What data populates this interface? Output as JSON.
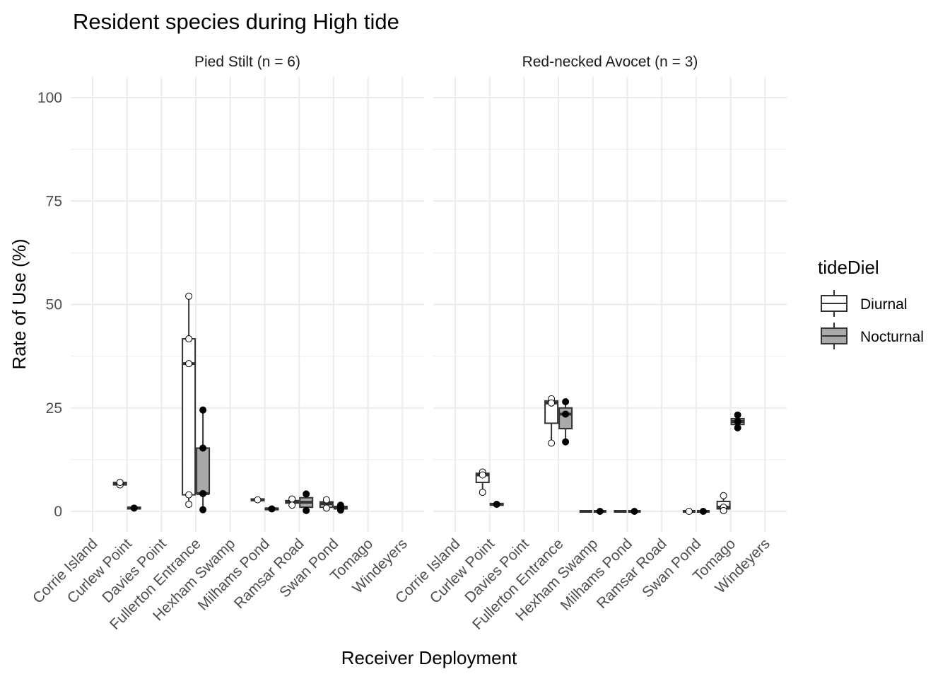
{
  "chart_data": {
    "type": "box",
    "title": "Resident species during High tide",
    "xlabel": "Receiver Deployment",
    "ylabel": "Rate of Use (%)",
    "ylim": [
      -5,
      105
    ],
    "yticks": [
      0,
      25,
      50,
      75,
      100
    ],
    "grid": true,
    "legend": {
      "title": "tideDiel",
      "position": "right",
      "entries": [
        {
          "name": "Diurnal",
          "fill": "#ffffff"
        },
        {
          "name": "Nocturnal",
          "fill": "#a9a9a9"
        }
      ]
    },
    "categories": [
      "Corrie Island",
      "Curlew Point",
      "Davies Point",
      "Fullerton Entrance",
      "Hexham Swamp",
      "Milhams Pond",
      "Ramsar Road",
      "Swan Pond",
      "Tomago",
      "Windeyers"
    ],
    "facets": [
      {
        "label": "Pied Stilt (n = 6)",
        "boxes": [
          {
            "category": "Curlew Point",
            "group": "Diurnal",
            "q1": 6.4,
            "median": 6.7,
            "q3": 7.0,
            "lower": 6.4,
            "upper": 7.0,
            "points": [
              6.4,
              7.0
            ]
          },
          {
            "category": "Curlew Point",
            "group": "Nocturnal",
            "q1": 0.6,
            "median": 0.8,
            "q3": 1.0,
            "lower": 0.6,
            "upper": 1.0,
            "points": [
              0.8
            ]
          },
          {
            "category": "Fullerton Entrance",
            "group": "Diurnal",
            "q1": 4.0,
            "median": 35.7,
            "q3": 41.7,
            "lower": 1.7,
            "upper": 52.0,
            "points": [
              52.0,
              41.7,
              35.7,
              4.0,
              1.7
            ]
          },
          {
            "category": "Fullerton Entrance",
            "group": "Nocturnal",
            "q1": 4.3,
            "median": 4.3,
            "q3": 15.3,
            "lower": 0.4,
            "upper": 24.5,
            "points": [
              24.5,
              15.3,
              4.3,
              0.4
            ]
          },
          {
            "category": "Milhams Pond",
            "group": "Diurnal",
            "q1": 2.6,
            "median": 2.8,
            "q3": 3.0,
            "lower": 2.6,
            "upper": 3.0,
            "points": [
              2.8
            ]
          },
          {
            "category": "Milhams Pond",
            "group": "Nocturnal",
            "q1": 0.4,
            "median": 0.6,
            "q3": 0.8,
            "lower": 0.4,
            "upper": 0.8,
            "points": [
              0.6
            ]
          },
          {
            "category": "Ramsar Road",
            "group": "Diurnal",
            "q1": 2.0,
            "median": 2.3,
            "q3": 2.6,
            "lower": 1.5,
            "upper": 3.0,
            "points": [
              3.0,
              1.5
            ]
          },
          {
            "category": "Ramsar Road",
            "group": "Nocturnal",
            "q1": 1.0,
            "median": 2.2,
            "q3": 3.3,
            "lower": 0.2,
            "upper": 4.2,
            "points": [
              4.2,
              0.2
            ]
          },
          {
            "category": "Swan Pond",
            "group": "Diurnal",
            "q1": 1.0,
            "median": 1.8,
            "q3": 2.3,
            "lower": 0.8,
            "upper": 2.8,
            "points": [
              2.8,
              0.8
            ]
          },
          {
            "category": "Swan Pond",
            "group": "Nocturnal",
            "q1": 0.6,
            "median": 1.0,
            "q3": 1.2,
            "lower": 0.3,
            "upper": 1.5,
            "points": [
              1.5,
              0.8,
              0.3
            ]
          }
        ]
      },
      {
        "label": "Red-necked Avocet (n = 3)",
        "boxes": [
          {
            "category": "Curlew Point",
            "group": "Diurnal",
            "q1": 7.0,
            "median": 8.8,
            "q3": 9.2,
            "lower": 4.6,
            "upper": 9.5,
            "points": [
              9.5,
              8.8,
              4.6
            ]
          },
          {
            "category": "Curlew Point",
            "group": "Nocturnal",
            "q1": 1.5,
            "median": 1.7,
            "q3": 1.9,
            "lower": 1.5,
            "upper": 1.9,
            "points": [
              1.7
            ]
          },
          {
            "category": "Fullerton Entrance",
            "group": "Diurnal",
            "q1": 21.3,
            "median": 26.2,
            "q3": 26.7,
            "lower": 16.5,
            "upper": 27.2,
            "points": [
              27.2,
              26.2,
              16.5
            ]
          },
          {
            "category": "Fullerton Entrance",
            "group": "Nocturnal",
            "q1": 20.0,
            "median": 23.5,
            "q3": 25.0,
            "lower": 16.8,
            "upper": 26.5,
            "points": [
              26.5,
              23.5,
              16.8
            ]
          },
          {
            "category": "Hexham Swamp",
            "group": "Diurnal",
            "q1": 0,
            "median": 0,
            "q3": 0,
            "lower": 0,
            "upper": 0,
            "points": []
          },
          {
            "category": "Hexham Swamp",
            "group": "Nocturnal",
            "q1": 0,
            "median": 0,
            "q3": 0,
            "lower": 0,
            "upper": 0,
            "points": [
              0
            ]
          },
          {
            "category": "Milhams Pond",
            "group": "Diurnal",
            "q1": 0,
            "median": 0,
            "q3": 0,
            "lower": 0,
            "upper": 0,
            "points": []
          },
          {
            "category": "Milhams Pond",
            "group": "Nocturnal",
            "q1": 0,
            "median": 0,
            "q3": 0,
            "lower": 0,
            "upper": 0,
            "points": [
              0
            ]
          },
          {
            "category": "Swan Pond",
            "group": "Diurnal",
            "q1": 0,
            "median": 0,
            "q3": 0,
            "lower": 0,
            "upper": 0,
            "points": [
              0
            ]
          },
          {
            "category": "Swan Pond",
            "group": "Nocturnal",
            "q1": 0,
            "median": 0,
            "q3": 0,
            "lower": 0,
            "upper": 0,
            "points": [
              0
            ]
          },
          {
            "category": "Tomago",
            "group": "Diurnal",
            "q1": 0.6,
            "median": 1.0,
            "q3": 2.4,
            "lower": 0.2,
            "upper": 3.8,
            "points": [
              3.8,
              1.0,
              0.2
            ]
          },
          {
            "category": "Tomago",
            "group": "Nocturnal",
            "q1": 21.0,
            "median": 21.7,
            "q3": 22.4,
            "lower": 20.2,
            "upper": 23.3,
            "points": [
              23.3,
              21.7,
              20.2
            ]
          }
        ]
      }
    ]
  }
}
